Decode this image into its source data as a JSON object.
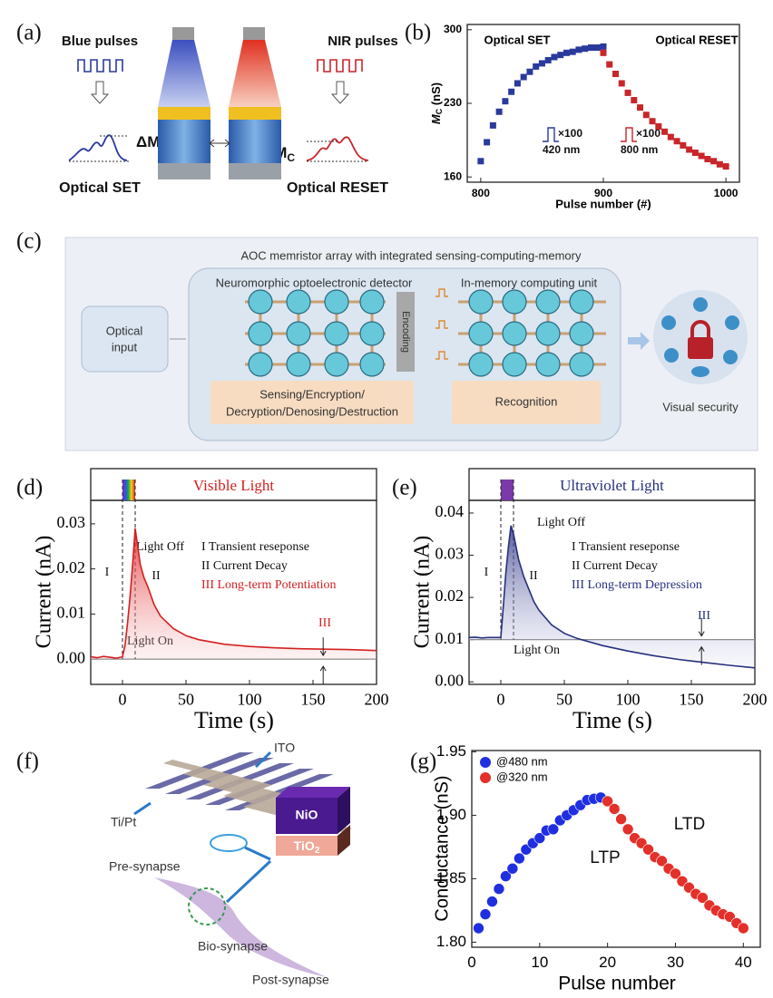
{
  "panel_labels": [
    "(a)",
    "(b)",
    "(c)",
    "(d)",
    "(e)",
    "(f)",
    "(g)"
  ],
  "panel_a": {
    "left_title": "Blue pulses",
    "right_title": "NIR pulses",
    "delta_main": "ΔM",
    "delta_sub": "C",
    "left_caption": "Optical SET",
    "right_caption": "Optical RESET"
  },
  "panel_c": {
    "title": "AOC memristor array with integrated sensing-computing-memory",
    "input": [
      "Optical",
      "input"
    ],
    "detector": "Neuromorphic optoelectronic detector",
    "computing": "In-memory computing unit",
    "encoding": "Encoding",
    "sensing": [
      "Sensing/Encryption/",
      "Decryption/Denosing/Destruction"
    ],
    "recognition": "Recognition",
    "security": "Visual security"
  },
  "panel_f": {
    "ito": "ITO",
    "tipt": "Ti/Pt",
    "pre": "Pre-synapse",
    "nio": "NiO",
    "tio_main": "TiO",
    "tio_sub": "2",
    "bio": "Bio-synapse",
    "post": "Post-synapse"
  },
  "chart_data": [
    {
      "type": "scatter",
      "marker": "square",
      "xlabel": "Pulse number (#)",
      "ylabel": [
        "M",
        "C",
        " (nS)"
      ],
      "xlim": [
        789,
        1011
      ],
      "ylim": [
        155,
        305
      ],
      "xticks": [
        800,
        900,
        1000
      ],
      "yticks": [
        160,
        230,
        300
      ],
      "annotations": [
        "×100",
        "420 nm",
        "×100",
        "800 nm"
      ],
      "series": [
        {
          "name": "Optical SET",
          "color": "#2a3a9c",
          "x": [
            800,
            805,
            810,
            815,
            820,
            825,
            830,
            835,
            840,
            845,
            850,
            855,
            860,
            865,
            870,
            875,
            880,
            885,
            890,
            895,
            900
          ],
          "values": [
            175,
            193,
            209,
            222,
            232,
            241,
            249,
            255,
            260,
            265,
            268,
            271,
            274,
            276,
            278,
            279,
            281,
            282,
            283,
            283,
            284
          ]
        },
        {
          "name": "Optical RESET",
          "color": "#c8262a",
          "x": [
            900,
            905,
            910,
            915,
            920,
            925,
            930,
            935,
            940,
            945,
            950,
            955,
            960,
            965,
            970,
            975,
            980,
            985,
            990,
            995,
            1000
          ],
          "values": [
            278,
            267,
            258,
            249,
            240,
            233,
            226,
            219,
            213,
            208,
            203,
            198,
            194,
            190,
            186,
            183,
            180,
            177,
            175,
            172,
            170
          ]
        }
      ]
    },
    {
      "type": "line",
      "xlabel": "Time (s)",
      "ylabel": "Current (nA)",
      "light_label": "Visible Light",
      "light_interval": [
        0,
        10
      ],
      "reference_line": 0,
      "xlim": [
        -25,
        200
      ],
      "ylim": [
        -0.0056,
        0.0352
      ],
      "xticks": [
        0,
        50,
        100,
        150,
        200
      ],
      "yticks": [
        {
          "value": 0,
          "label": "0.00"
        },
        {
          "value": 0.01,
          "label": "0.01"
        },
        {
          "value": 0.02,
          "label": "0.02"
        },
        {
          "value": 0.03,
          "label": "0.03"
        }
      ],
      "annotations": [
        "Light Off",
        "Light On",
        "I",
        "II",
        "III",
        "I Transient reseponse",
        "II Current Decay",
        "III Long-term Potentiation"
      ],
      "x": [
        -25,
        -20,
        -15,
        -10,
        -5,
        0,
        2,
        4,
        6,
        8,
        10,
        12,
        14,
        17,
        20,
        25,
        30,
        40,
        50,
        60,
        80,
        100,
        120,
        140,
        160,
        180,
        200
      ],
      "series": [
        {
          "color": "#d42020",
          "values": [
            0.0005,
            0.0003,
            0.0006,
            0.0004,
            0.0002,
            0.0005,
            0.003,
            0.008,
            0.014,
            0.021,
            0.029,
            0.025,
            0.021,
            0.018,
            0.016,
            0.012,
            0.0095,
            0.0068,
            0.0052,
            0.0043,
            0.0033,
            0.0028,
            0.0025,
            0.0023,
            0.0022,
            0.0021,
            0.0019
          ]
        }
      ]
    },
    {
      "type": "line",
      "xlabel": "Time (s)",
      "ylabel": "Current (nA)",
      "light_label": "Ultraviolet Light",
      "light_interval": [
        0,
        10
      ],
      "reference_line": 0.01,
      "xlim": [
        -25,
        200
      ],
      "ylim": [
        -0.0006,
        0.043
      ],
      "xticks": [
        0,
        50,
        100,
        150,
        200
      ],
      "yticks": [
        {
          "value": 0,
          "label": "0.00"
        },
        {
          "value": 0.01,
          "label": "0.01"
        },
        {
          "value": 0.02,
          "label": "0.02"
        },
        {
          "value": 0.03,
          "label": "0.03"
        },
        {
          "value": 0.04,
          "label": "0.04"
        }
      ],
      "annotations": [
        "Light Off",
        "Light On",
        "I",
        "II",
        "III",
        "I Transient reseponse",
        "II Current Decay",
        "III Long-term Depression"
      ],
      "x": [
        -25,
        -20,
        -15,
        -10,
        -5,
        0,
        2,
        4,
        6,
        8,
        10,
        14,
        18,
        22,
        26,
        30,
        40,
        50,
        60,
        80,
        100,
        120,
        140,
        160,
        180,
        200
      ],
      "series": [
        {
          "color": "#26307e",
          "values": [
            0.0105,
            0.0106,
            0.0104,
            0.0105,
            0.0105,
            0.0105,
            0.018,
            0.026,
            0.032,
            0.037,
            0.035,
            0.029,
            0.025,
            0.022,
            0.019,
            0.017,
            0.0135,
            0.0115,
            0.0103,
            0.0086,
            0.0073,
            0.0062,
            0.0053,
            0.0046,
            0.0039,
            0.0033
          ]
        }
      ]
    },
    {
      "type": "scatter",
      "marker": "circle",
      "xlabel": "Pulse number",
      "ylabel": "Conductance (nS)",
      "xlim": [
        0,
        42.5
      ],
      "ylim": [
        1.796,
        1.951
      ],
      "xticks": [
        0,
        10,
        20,
        30,
        40
      ],
      "yticks": [
        {
          "value": 1.8,
          "label": "1.80"
        },
        {
          "value": 1.85,
          "label": "1.85"
        },
        {
          "value": 1.9,
          "label": "1.90"
        },
        {
          "value": 1.95,
          "label": "1.95"
        }
      ],
      "annotations": [
        "LTP",
        "LTD"
      ],
      "series": [
        {
          "name": "@480 nm",
          "color": "#1f2fe0",
          "x": [
            1,
            2,
            3,
            4,
            5,
            6,
            7,
            8,
            9,
            10,
            11,
            12,
            13,
            14,
            15,
            16,
            17,
            18,
            19
          ],
          "values": [
            1.811,
            1.822,
            1.832,
            1.842,
            1.852,
            1.858,
            1.866,
            1.873,
            1.878,
            1.882,
            1.888,
            1.889,
            1.896,
            1.9,
            1.904,
            1.908,
            1.912,
            1.913,
            1.914
          ]
        },
        {
          "name": "@320 nm",
          "color": "#e3302a",
          "x": [
            20,
            21,
            22,
            23,
            24,
            25,
            26,
            27,
            28,
            29,
            30,
            31,
            32,
            33,
            34,
            35,
            36,
            37,
            38,
            39,
            40
          ],
          "values": [
            1.911,
            1.905,
            1.897,
            1.889,
            1.882,
            1.878,
            1.873,
            1.867,
            1.864,
            1.858,
            1.854,
            1.848,
            1.843,
            1.838,
            1.835,
            1.829,
            1.825,
            1.822,
            1.82,
            1.815,
            1.811
          ]
        }
      ]
    }
  ]
}
